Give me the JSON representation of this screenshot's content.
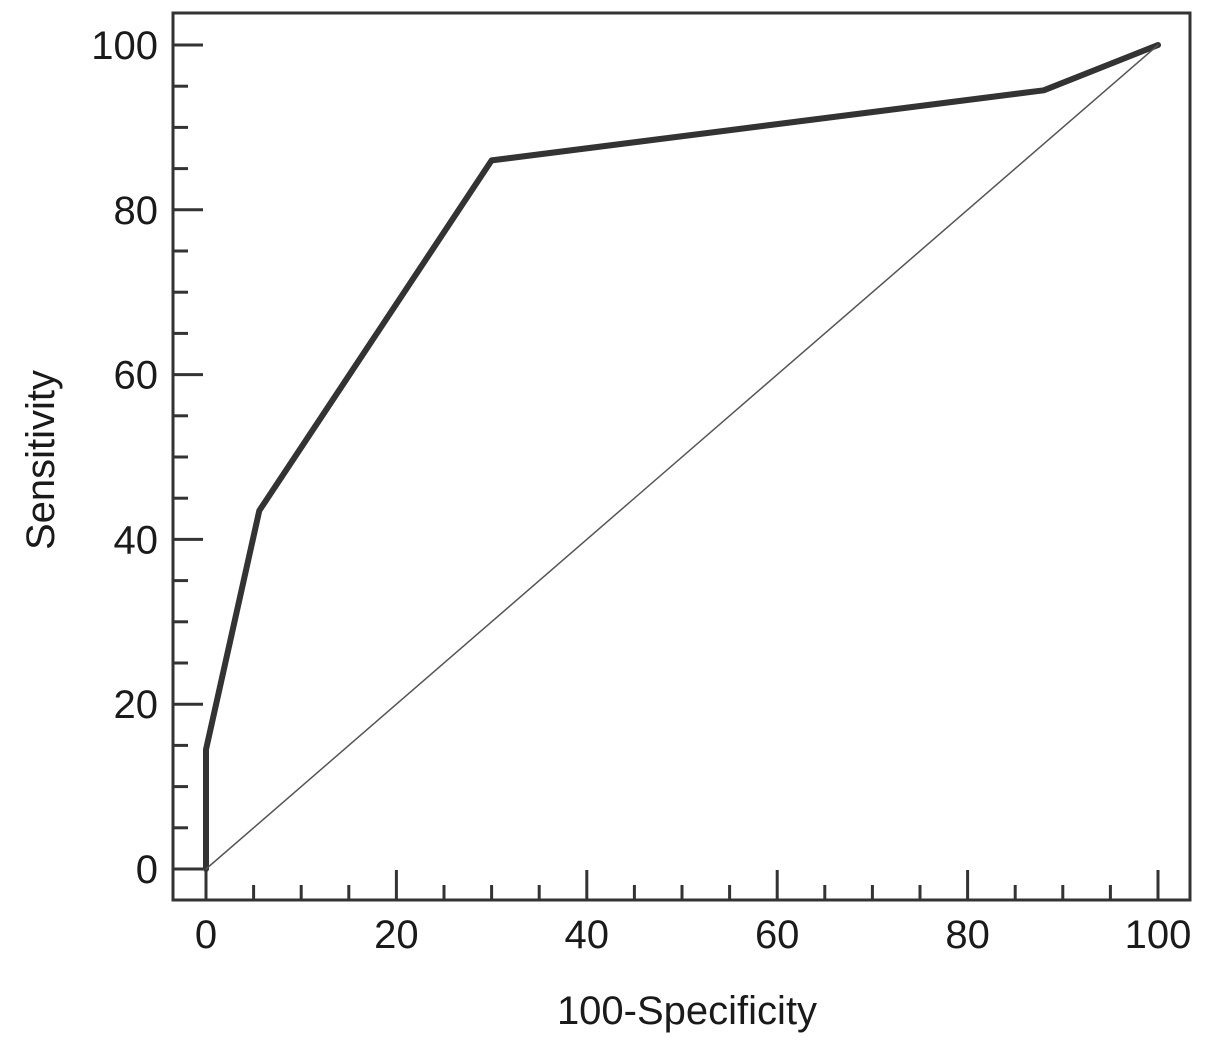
{
  "chart_data": {
    "type": "line",
    "title": "",
    "xlabel": "100-Specificity",
    "ylabel": "Sensitivity",
    "xlim": [
      0,
      100
    ],
    "ylim": [
      0,
      100
    ],
    "x_ticks": [
      0,
      20,
      40,
      60,
      80,
      100
    ],
    "y_ticks": [
      0,
      20,
      40,
      60,
      80,
      100
    ],
    "x_tick_labels": [
      "0",
      "20",
      "40",
      "60",
      "80",
      "100"
    ],
    "y_tick_labels": [
      "0",
      "20",
      "40",
      "60",
      "80",
      "100"
    ],
    "grid": false,
    "legend": "none",
    "series": [
      {
        "x": [
          0,
          0,
          5.6,
          30,
          88,
          100
        ],
        "y": [
          0,
          14.5,
          43.5,
          86,
          94.5,
          100
        ],
        "color": "#333333"
      },
      {
        "x": [
          0,
          100
        ],
        "y": [
          0,
          100
        ],
        "color": "#555555"
      }
    ]
  }
}
